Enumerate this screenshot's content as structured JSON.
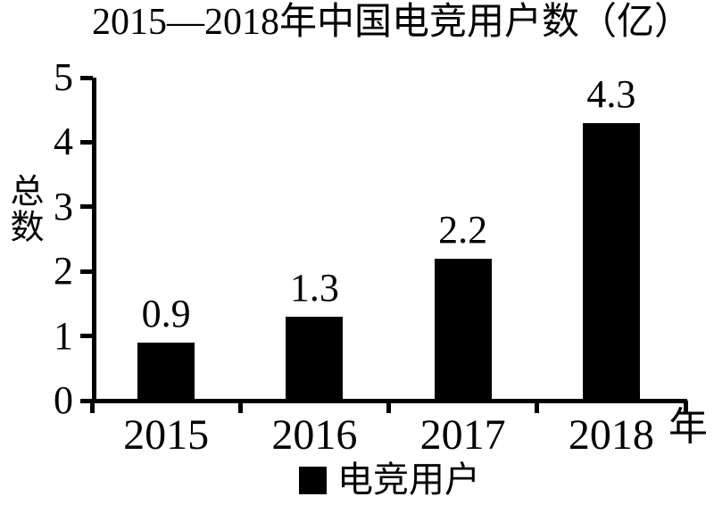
{
  "page": {
    "background_color": "#ffffff",
    "foreground_color": "#000000"
  },
  "chart_data": {
    "type": "bar",
    "title": "2015—2018年中国电竞用户数（亿）",
    "categories": [
      "2015",
      "2016",
      "2017",
      "2018"
    ],
    "values": [
      0.9,
      1.3,
      2.2,
      4.3
    ],
    "value_labels": [
      "0.9",
      "1.3",
      "2.2",
      "4.3"
    ],
    "ylabel": "总数",
    "xlabel": "年",
    "ylim": [
      0,
      5
    ],
    "yticks": [
      "0",
      "1",
      "2",
      "3",
      "4",
      "5"
    ],
    "grid": false,
    "bar_color": "#000000",
    "text_color": "#000000",
    "legend": {
      "position": "bottom",
      "items": [
        {
          "label": "电竞用户",
          "color": "#000000"
        }
      ]
    }
  }
}
